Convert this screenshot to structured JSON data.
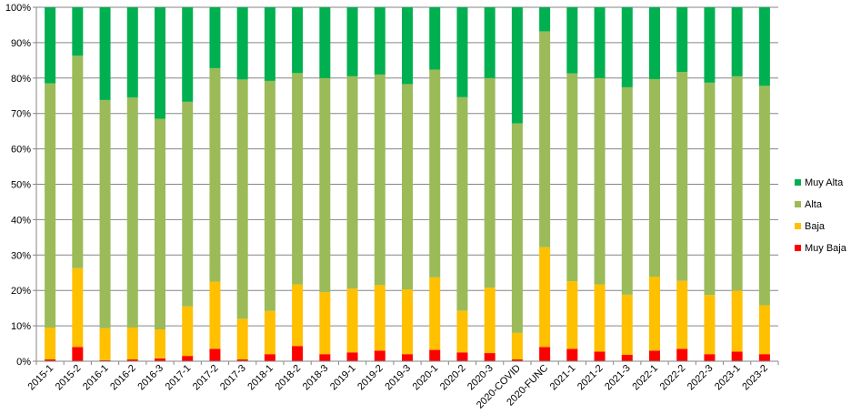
{
  "chart_data": {
    "type": "bar",
    "stacked": "percent",
    "title": "",
    "xlabel": "",
    "ylabel": "",
    "ylim": [
      0,
      100
    ],
    "y_ticks": [
      "0%",
      "10%",
      "20%",
      "30%",
      "40%",
      "50%",
      "60%",
      "70%",
      "80%",
      "90%",
      "100%"
    ],
    "grid": true,
    "legend_position": "right",
    "categories": [
      "2015-1",
      "2015-2",
      "2016-1",
      "2016-2",
      "2016-3",
      "2017-1",
      "2017-2",
      "2017-3",
      "2018-1",
      "2018-2",
      "2018-3",
      "2019-1",
      "2019-2",
      "2019-3",
      "2020-1",
      "2020-2",
      "2020-3",
      "2020-COVID",
      "2020-FUNC",
      "2021-1",
      "2021-2",
      "2021-3",
      "2022-1",
      "2022-2",
      "2022-3",
      "2023-1",
      "2023-2"
    ],
    "series": [
      {
        "name": "Muy Baja",
        "color": "#FF0000",
        "values": [
          0.5,
          4,
          0.3,
          0.5,
          0.8,
          1.5,
          3.5,
          0.5,
          2,
          4.3,
          2,
          2.5,
          3,
          2,
          3.2,
          2.5,
          2.3,
          0.5,
          4,
          3.5,
          2.7,
          1.8,
          3,
          3.5,
          2,
          2.7,
          2
        ]
      },
      {
        "name": "Baja",
        "color": "#FFC000",
        "values": [
          9,
          22.3,
          9,
          9,
          8.2,
          14,
          19,
          11.5,
          12.2,
          17.4,
          17.5,
          18,
          18.5,
          18.3,
          20.5,
          11.8,
          18.5,
          7.5,
          28.2,
          19.1,
          19,
          17,
          20.9,
          19.2,
          16.7,
          17.3,
          13.8
        ]
      },
      {
        "name": "Alta",
        "color": "#9BBB59",
        "values": [
          69,
          60,
          64.5,
          65,
          59.5,
          57.8,
          60.3,
          67.6,
          65,
          59.7,
          60.5,
          60,
          59.5,
          58,
          58.7,
          60.3,
          59.2,
          59.2,
          61,
          58.7,
          58.3,
          58.6,
          55.8,
          59,
          60,
          60.5,
          62
        ]
      },
      {
        "name": "Muy Alta",
        "color": "#00B050",
        "values": [
          21.5,
          13.7,
          26.2,
          25.5,
          31.5,
          26.7,
          17.2,
          20.4,
          20.8,
          18.6,
          20,
          19.5,
          19,
          21.7,
          17.6,
          25.4,
          20,
          32.8,
          6.8,
          18.7,
          20,
          22.6,
          20.3,
          18.3,
          21.3,
          19.5,
          22.2
        ]
      }
    ],
    "legend_order": [
      "Muy Alta",
      "Alta",
      "Baja",
      "Muy Baja"
    ]
  }
}
